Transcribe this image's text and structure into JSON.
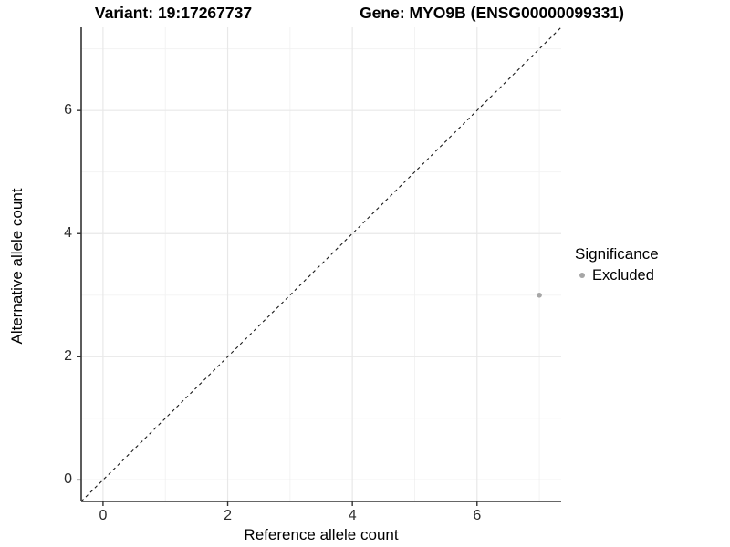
{
  "titles": {
    "variant": "Variant: 19:17267737",
    "gene": "Gene: MYO9B (ENSG00000099331)"
  },
  "legend": {
    "title": "Significance",
    "items": [
      {
        "label": "Excluded",
        "color": "#a6a6a6"
      }
    ]
  },
  "colors": {
    "background": "#ffffff",
    "panel_background": "#ffffff",
    "major_grid": "#e8e8e8",
    "minor_grid": "#f2f2f2",
    "axis_line": "#333333",
    "tick_mark": "#333333",
    "tick_label": "#2b2b2b",
    "identity_line": "#1a1a1a"
  },
  "chart_data": {
    "type": "scatter",
    "title": "Variant: 19:17267737 / Gene: MYO9B (ENSG00000099331)",
    "xlabel": "Reference allele count",
    "ylabel": "Alternative allele count",
    "xlim": [
      -0.35,
      7.35
    ],
    "ylim": [
      -0.35,
      7.35
    ],
    "x_ticks": [
      0,
      2,
      4,
      6
    ],
    "y_ticks": [
      0,
      2,
      4,
      6
    ],
    "x_minor_gridlines": [
      1,
      3,
      5,
      7
    ],
    "y_minor_gridlines": [
      1,
      3,
      5,
      7
    ],
    "grid": true,
    "legend_position": "right",
    "legend_title": "Significance",
    "series": [
      {
        "name": "Excluded",
        "color": "#a6a6a6",
        "points": [
          {
            "x": 7,
            "y": 3
          }
        ]
      }
    ],
    "reference_line": {
      "type": "identity",
      "equation": "y = x",
      "style": "dashed",
      "color": "#1a1a1a"
    }
  }
}
